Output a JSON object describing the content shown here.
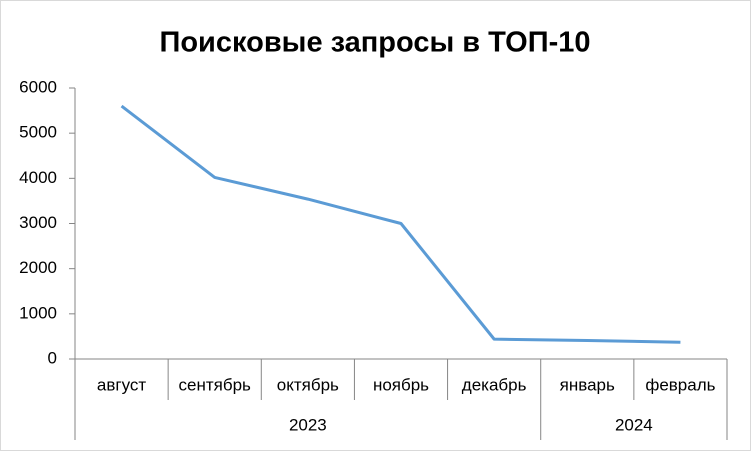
{
  "chart_data": {
    "type": "line",
    "title": "Поисковые запросы в ТОП-10",
    "groups": [
      {
        "name": "2023",
        "categories": [
          "август",
          "сентябрь",
          "октябрь",
          "ноябрь",
          "декабрь"
        ]
      },
      {
        "name": "2024",
        "categories": [
          "январь",
          "февраль"
        ]
      }
    ],
    "series": [
      {
        "color": "#5b9bd5",
        "values": [
          5600,
          4020,
          3540,
          3000,
          440,
          410,
          370
        ]
      }
    ],
    "ylim": [
      0,
      6000
    ],
    "yticks": [
      0,
      1000,
      2000,
      3000,
      4000,
      5000,
      6000
    ],
    "grid": false
  }
}
